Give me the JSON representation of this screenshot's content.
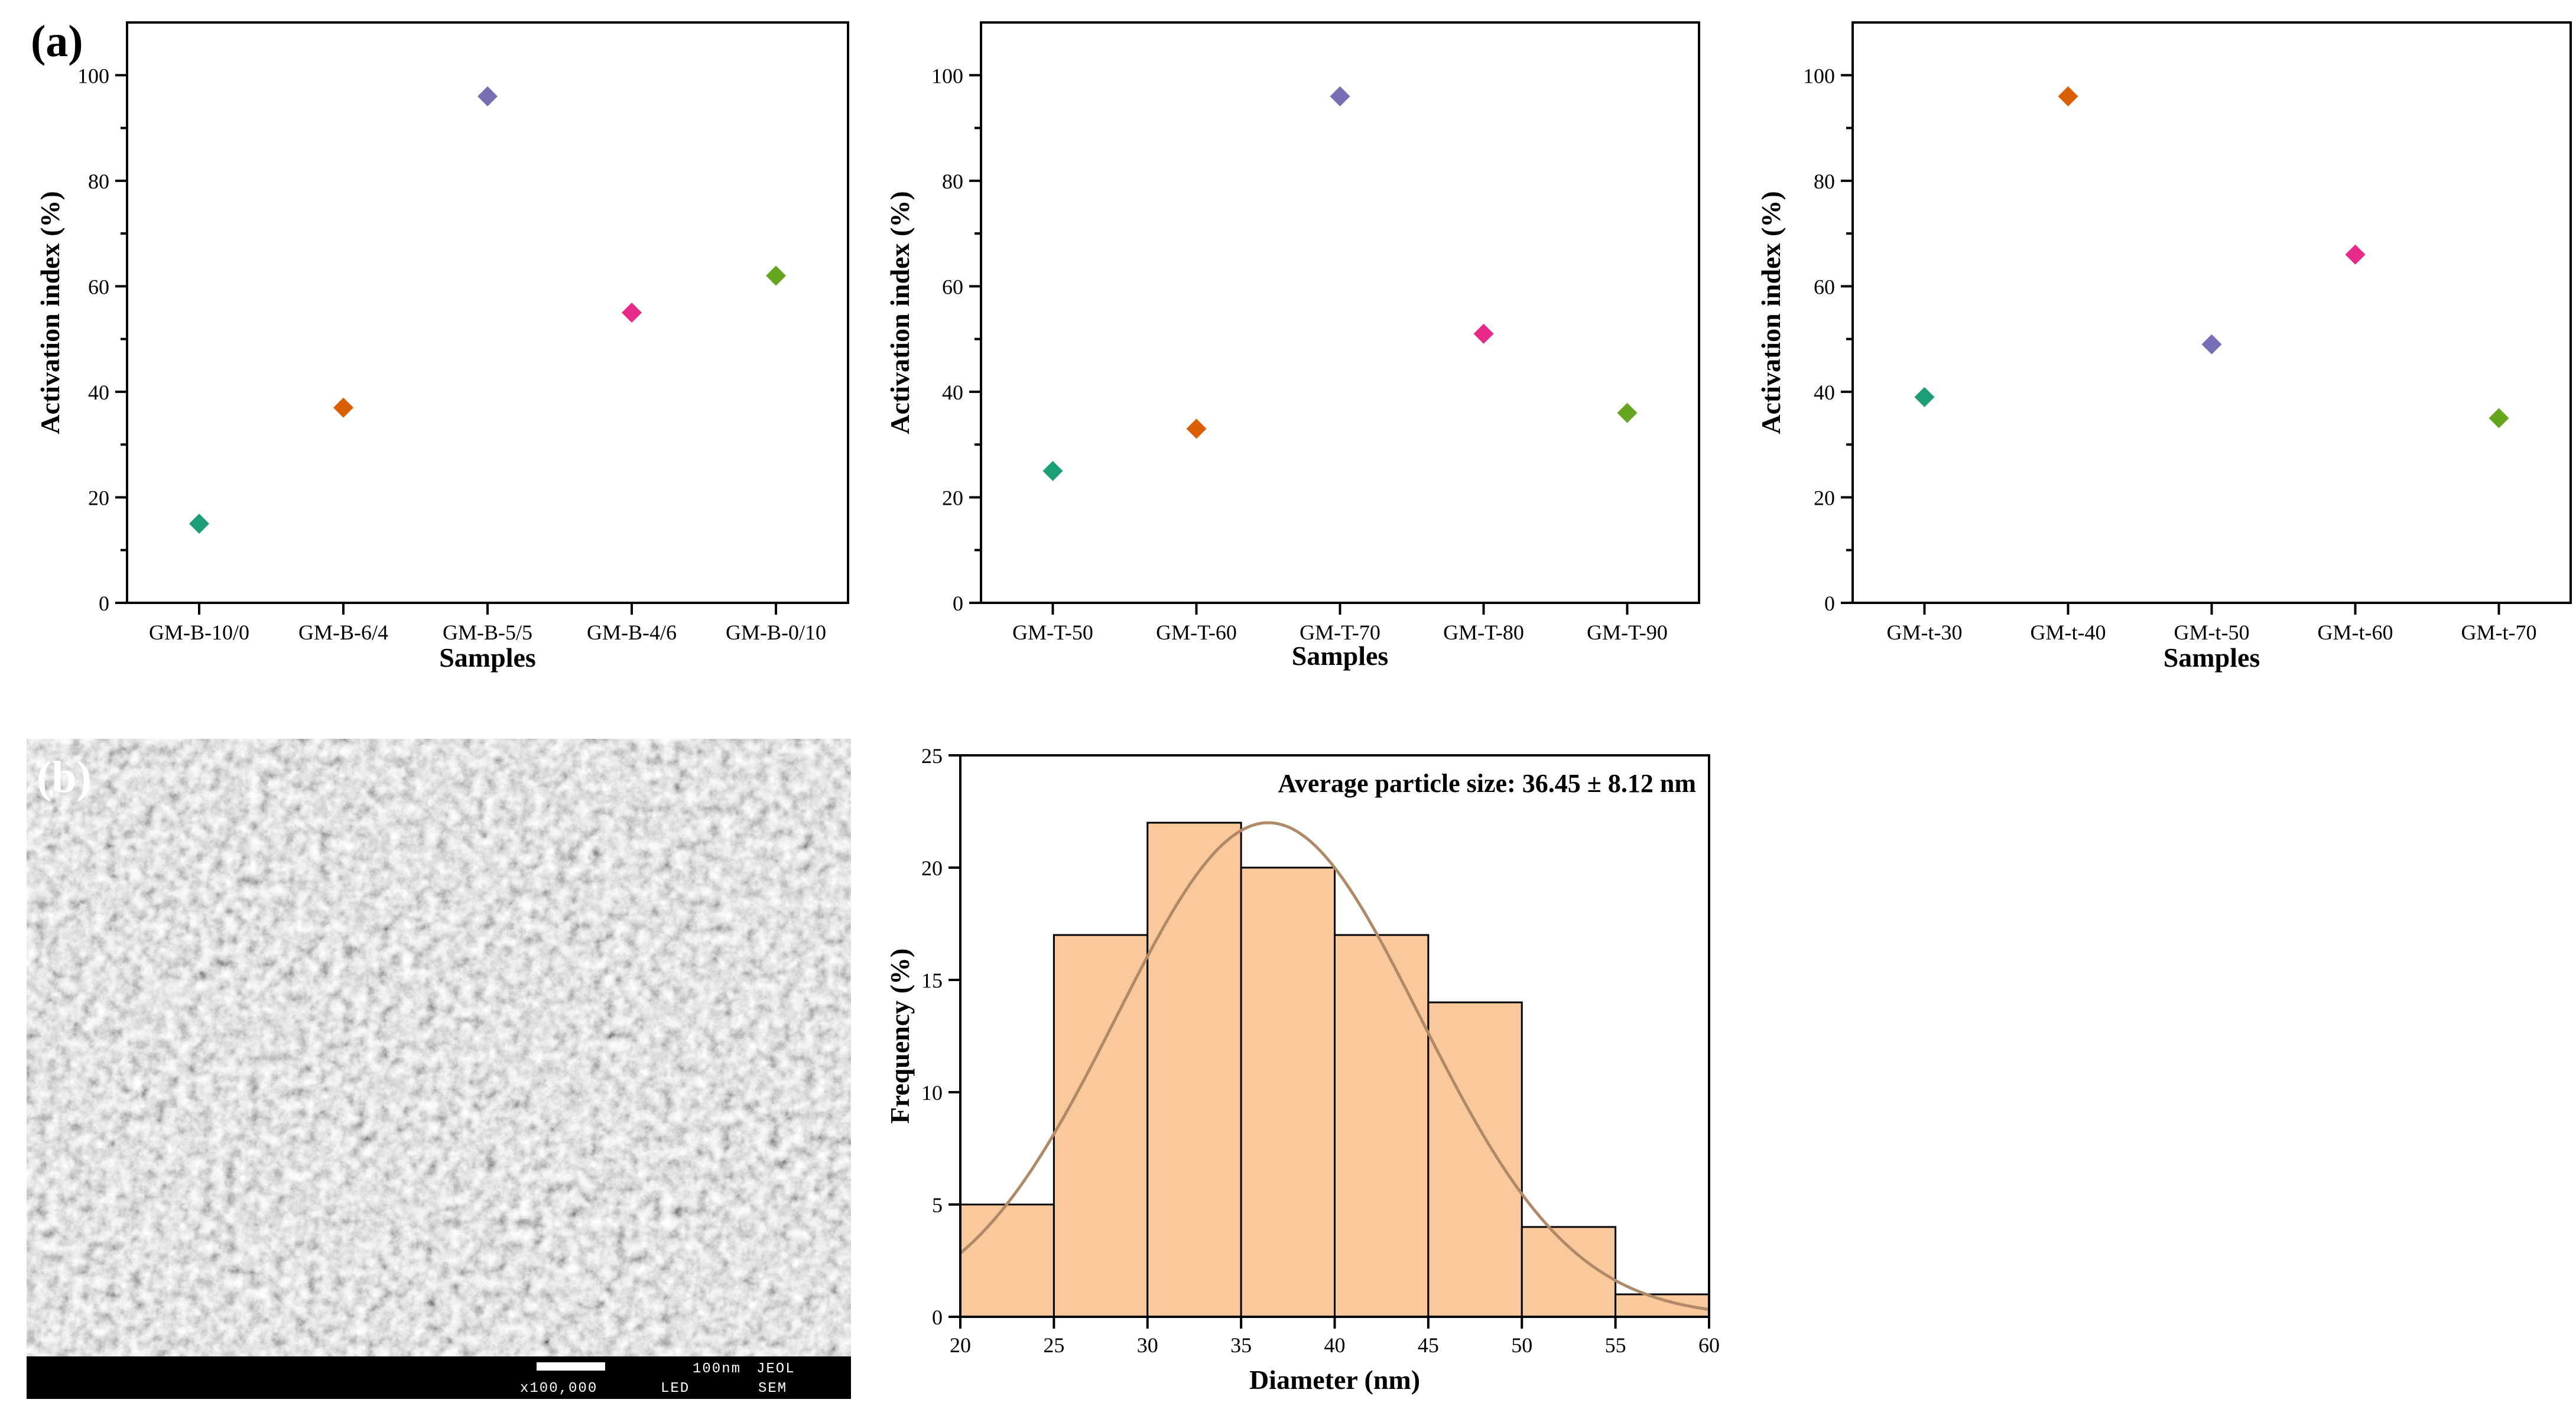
{
  "figure": {
    "panel_a_label": "(a)",
    "panel_b_label": "(b)",
    "label_color_a": "#000000",
    "label_color_b": "#ffffff"
  },
  "chart_data": [
    {
      "id": "scatter-1",
      "type": "scatter",
      "title": "",
      "xlabel": "Samples",
      "ylabel": "Activation index (%)",
      "ylim": [
        0,
        110
      ],
      "yticks": [
        0,
        20,
        40,
        60,
        80,
        100
      ],
      "categories": [
        "GM-B-10/0",
        "GM-B-6/4",
        "GM-B-5/5",
        "GM-B-4/6",
        "GM-B-0/10"
      ],
      "values": [
        15,
        37,
        96,
        55,
        62
      ],
      "colors": [
        "#1b9e77",
        "#d95f02",
        "#7570b3",
        "#e7298a",
        "#66a61e"
      ],
      "marker": "diamond"
    },
    {
      "id": "scatter-2",
      "type": "scatter",
      "title": "",
      "xlabel": "Samples",
      "ylabel": "Activation index (%)",
      "ylim": [
        0,
        110
      ],
      "yticks": [
        0,
        20,
        40,
        60,
        80,
        100
      ],
      "categories": [
        "GM-T-50",
        "GM-T-60",
        "GM-T-70",
        "GM-T-80",
        "GM-T-90"
      ],
      "values": [
        25,
        33,
        96,
        51,
        36
      ],
      "colors": [
        "#1b9e77",
        "#d95f02",
        "#7570b3",
        "#e7298a",
        "#66a61e"
      ],
      "marker": "diamond"
    },
    {
      "id": "scatter-3",
      "type": "scatter",
      "title": "",
      "xlabel": "Samples",
      "ylabel": "Activation index (%)",
      "ylim": [
        0,
        110
      ],
      "yticks": [
        0,
        20,
        40,
        60,
        80,
        100
      ],
      "categories": [
        "GM-t-30",
        "GM-t-40",
        "GM-t-50",
        "GM-t-60",
        "GM-t-70"
      ],
      "values": [
        39,
        96,
        49,
        66,
        35
      ],
      "colors": [
        "#1b9e77",
        "#d95f02",
        "#7570b3",
        "#e7298a",
        "#66a61e"
      ],
      "marker": "diamond"
    },
    {
      "id": "histogram",
      "type": "bar",
      "title": "",
      "annotation": "Average particle size: 36.45 ± 8.12 nm",
      "xlabel": "Diameter (nm)",
      "ylabel": "Frequency (%)",
      "xlim": [
        20,
        60
      ],
      "ylim": [
        0,
        25
      ],
      "xticks": [
        20,
        25,
        30,
        35,
        40,
        45,
        50,
        55,
        60
      ],
      "yticks": [
        0,
        5,
        10,
        15,
        20,
        25
      ],
      "bin_edges": [
        20,
        25,
        30,
        35,
        40,
        45,
        50,
        55,
        60
      ],
      "values": [
        5,
        17,
        22,
        20,
        17,
        14,
        4,
        1
      ],
      "bar_color": "#f9c89b",
      "fit": {
        "type": "gaussian",
        "mean": 36.45,
        "sd": 8.12,
        "peak": 22,
        "color": "#b08a68"
      }
    }
  ],
  "sem_image": {
    "scale_text": "100nm",
    "maker": "JEOL",
    "magnification": "x100,000",
    "detector": "LED",
    "mode": "SEM"
  }
}
